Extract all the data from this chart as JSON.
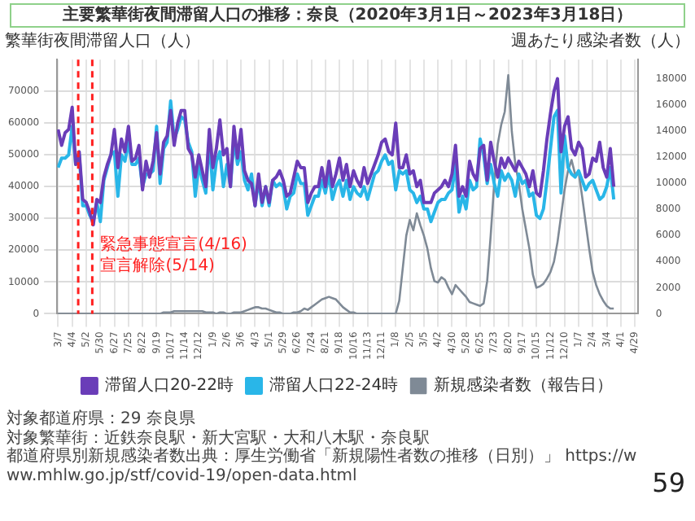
{
  "chart_data": {
    "type": "line",
    "title": "主要繁華街夜間滞留人口の推移：奈良（2020年3月1日～2023年3月18日）",
    "ylabel": "繁華街夜間滞留人口（人）",
    "y2label": "週あたり感染者数（人）",
    "x": [
      "2020-03-07",
      "2020-03-14",
      "2020-03-21",
      "2020-03-28",
      "2020-04-04",
      "2020-04-11",
      "2020-04-18",
      "2020-04-25",
      "2020-05-02",
      "2020-05-09",
      "2020-05-16",
      "2020-05-23",
      "2020-05-30",
      "2020-06-06",
      "2020-06-13",
      "2020-06-20",
      "2020-06-27",
      "2020-07-04",
      "2020-07-11",
      "2020-07-18",
      "2020-07-25",
      "2020-08-01",
      "2020-08-08",
      "2020-08-15",
      "2020-08-22",
      "2020-08-29",
      "2020-09-05",
      "2020-09-12",
      "2020-09-19",
      "2020-09-26",
      "2020-10-03",
      "2020-10-10",
      "2020-10-17",
      "2020-10-24",
      "2020-10-31",
      "2020-11-07",
      "2020-11-14",
      "2020-11-21",
      "2020-11-28",
      "2020-12-05",
      "2020-12-12",
      "2020-12-19",
      "2020-12-26",
      "2021-01-02",
      "2021-01-09",
      "2021-01-16",
      "2021-01-23",
      "2021-01-30",
      "2021-02-06",
      "2021-02-13",
      "2021-02-20",
      "2021-02-27",
      "2021-03-06",
      "2021-03-13",
      "2021-03-20",
      "2021-03-27",
      "2021-04-03",
      "2021-04-10",
      "2021-04-17",
      "2021-04-24",
      "2021-05-01",
      "2021-05-08",
      "2021-05-15",
      "2021-05-22",
      "2021-05-29",
      "2021-06-05",
      "2021-06-12",
      "2021-06-19",
      "2021-06-26",
      "2021-07-03",
      "2021-07-10",
      "2021-07-17",
      "2021-07-24",
      "2021-07-31",
      "2021-08-07",
      "2021-08-14",
      "2021-08-21",
      "2021-08-28",
      "2021-09-04",
      "2021-09-11",
      "2021-09-18",
      "2021-09-25",
      "2021-10-02",
      "2021-10-09",
      "2021-10-16",
      "2021-10-23",
      "2021-10-30",
      "2021-11-06",
      "2021-11-13",
      "2021-11-20",
      "2021-11-27",
      "2021-12-04",
      "2021-12-11",
      "2021-12-18",
      "2021-12-25",
      "2022-01-01",
      "2022-01-08",
      "2022-01-15",
      "2022-01-22",
      "2022-01-29",
      "2022-02-05",
      "2022-02-12",
      "2022-02-19",
      "2022-02-26",
      "2022-03-05",
      "2022-03-12",
      "2022-03-19",
      "2022-03-26",
      "2022-04-02",
      "2022-04-09",
      "2022-04-16",
      "2022-04-23",
      "2022-04-30",
      "2022-05-07",
      "2022-05-14",
      "2022-05-21",
      "2022-05-28",
      "2022-06-04",
      "2022-06-11",
      "2022-06-18",
      "2022-06-25",
      "2022-07-02",
      "2022-07-09",
      "2022-07-16",
      "2022-07-23",
      "2022-07-30",
      "2022-08-06",
      "2022-08-13",
      "2022-08-20",
      "2022-08-27",
      "2022-09-03",
      "2022-09-10",
      "2022-09-17",
      "2022-09-24",
      "2022-10-01",
      "2022-10-08",
      "2022-10-15",
      "2022-10-22",
      "2022-10-29",
      "2022-11-05",
      "2022-11-12",
      "2022-11-19",
      "2022-11-26",
      "2022-12-03",
      "2022-12-10",
      "2022-12-17",
      "2022-12-24",
      "2022-12-31",
      "2023-01-07",
      "2023-01-14",
      "2023-01-21",
      "2023-01-28",
      "2023-02-04",
      "2023-02-11",
      "2023-02-18",
      "2023-02-25",
      "2023-03-04",
      "2023-03-11",
      "2023-03-18"
    ],
    "series": [
      {
        "name": "滞留人口20-22時",
        "color": "#6a3db8",
        "axis": "y",
        "values": [
          58000,
          53000,
          57000,
          58000,
          65000,
          47000,
          51000,
          36000,
          35000,
          32000,
          28000,
          36000,
          35000,
          43000,
          47000,
          50000,
          58000,
          46000,
          55000,
          51000,
          59000,
          48000,
          49000,
          53000,
          39000,
          48000,
          43000,
          48000,
          57000,
          44000,
          54000,
          56000,
          64000,
          53000,
          60000,
          64000,
          64000,
          52000,
          50000,
          43000,
          50000,
          45000,
          40000,
          58000,
          46000,
          52000,
          61000,
          50000,
          52000,
          40000,
          59000,
          49000,
          58000,
          45000,
          42000,
          41000,
          34000,
          44000,
          35000,
          40000,
          35000,
          42000,
          43000,
          45000,
          42000,
          37000,
          38000,
          43000,
          48000,
          46000,
          46000,
          35000,
          38000,
          40000,
          40000,
          46000,
          40000,
          48000,
          40000,
          44000,
          49000,
          42000,
          47000,
          40000,
          45000,
          42000,
          40000,
          46000,
          41000,
          44000,
          47000,
          50000,
          54000,
          55000,
          51000,
          50000,
          60000,
          46000,
          46000,
          50000,
          44000,
          45000,
          40000,
          42000,
          35000,
          35000,
          35000,
          38000,
          39000,
          40000,
          42000,
          40000,
          44000,
          53000,
          37000,
          40000,
          37000,
          48000,
          44000,
          42000,
          52000,
          53000,
          42000,
          54000,
          48000,
          43000,
          49000,
          46000,
          49000,
          47000,
          45000,
          48000,
          46000,
          44000,
          40000,
          45000,
          38000,
          37000,
          45000,
          55000,
          63000,
          70000,
          74000,
          51000,
          59000,
          62000,
          52000,
          50000,
          54000,
          52000,
          43000,
          44000,
          49000,
          48000,
          54000,
          46000,
          43000,
          52000,
          40000
        ]
      },
      {
        "name": "滞留人口22-24時",
        "color": "#29b6e8",
        "axis": "y",
        "values": [
          46000,
          49000,
          49000,
          50000,
          59000,
          47000,
          50000,
          34000,
          34000,
          31000,
          29000,
          35000,
          29000,
          42000,
          46000,
          50000,
          51000,
          37000,
          50000,
          48000,
          54000,
          47000,
          47000,
          49000,
          40000,
          44000,
          44000,
          45000,
          59000,
          41000,
          52000,
          54000,
          67000,
          55000,
          58000,
          62000,
          61000,
          54000,
          51000,
          37000,
          47000,
          42000,
          38000,
          55000,
          39000,
          48000,
          51000,
          40000,
          47000,
          40000,
          55000,
          47000,
          51000,
          42000,
          39000,
          44000,
          34000,
          42000,
          34000,
          40000,
          34000,
          42000,
          40000,
          41000,
          40000,
          33000,
          37000,
          38000,
          44000,
          41000,
          41000,
          31000,
          34000,
          37000,
          37000,
          42000,
          38000,
          44000,
          36000,
          40000,
          42000,
          37000,
          42000,
          36000,
          40000,
          38000,
          37000,
          40000,
          36000,
          40000,
          44000,
          45000,
          48000,
          50000,
          47000,
          48000,
          39000,
          45000,
          44000,
          45000,
          39000,
          38000,
          35000,
          37000,
          33000,
          33000,
          29000,
          32000,
          35000,
          36000,
          36000,
          38000,
          39000,
          47000,
          32000,
          37000,
          33000,
          42000,
          39000,
          40000,
          55000,
          50000,
          41000,
          47000,
          41000,
          37000,
          45000,
          42000,
          44000,
          42000,
          37000,
          44000,
          41000,
          42000,
          37000,
          38000,
          31000,
          30000,
          33000,
          42000,
          52000,
          62000,
          64000,
          38000,
          56000,
          46000,
          44000,
          43000,
          45000,
          42000,
          39000,
          41000,
          42000,
          39000,
          36000,
          37000,
          40000,
          46000,
          36000
        ]
      },
      {
        "name": "新規感染者数（報告日）",
        "color": "#7f8a96",
        "axis": "y2",
        "values": [
          0,
          0,
          0,
          0,
          0,
          0,
          0,
          0,
          0,
          0,
          0,
          0,
          0,
          0,
          0,
          0,
          0,
          0,
          0,
          0,
          0,
          0,
          0,
          0,
          0,
          0,
          0,
          0,
          0,
          0,
          100,
          100,
          100,
          200,
          200,
          200,
          200,
          200,
          200,
          200,
          200,
          200,
          100,
          100,
          100,
          0,
          100,
          100,
          0,
          0,
          100,
          100,
          100,
          200,
          300,
          400,
          500,
          500,
          400,
          400,
          300,
          200,
          100,
          100,
          0,
          0,
          0,
          100,
          100,
          200,
          400,
          300,
          500,
          700,
          900,
          1100,
          1200,
          1300,
          1200,
          1100,
          800,
          500,
          300,
          100,
          100,
          0,
          0,
          0,
          0,
          0,
          0,
          0,
          0,
          0,
          0,
          0,
          0,
          1000,
          3500,
          6000,
          7200,
          6400,
          7700,
          6800,
          6000,
          5000,
          3500,
          2500,
          2400,
          2800,
          2600,
          2000,
          1500,
          2200,
          1900,
          1600,
          1300,
          900,
          800,
          700,
          600,
          800,
          2500,
          6000,
          10000,
          13000,
          14500,
          15500,
          18300,
          14000,
          11500,
          10000,
          8000,
          6500,
          5000,
          3000,
          2000,
          2100,
          2300,
          2700,
          3200,
          4000,
          5500,
          7500,
          9500,
          11000,
          11800,
          10700,
          10900,
          9000,
          7000,
          5000,
          3200,
          2200,
          1500,
          1000,
          600,
          400,
          400
        ]
      }
    ],
    "xlim": [
      "2020-03-05",
      "2023-05-05"
    ],
    "xticks": [
      {
        "value": "2020-03-07",
        "label": "3/7"
      },
      {
        "value": "2020-04-04",
        "label": "4/4"
      },
      {
        "value": "2020-05-02",
        "label": "5/2"
      },
      {
        "value": "2020-05-30",
        "label": "5/30"
      },
      {
        "value": "2020-06-27",
        "label": "6/27"
      },
      {
        "value": "2020-07-25",
        "label": "7/25"
      },
      {
        "value": "2020-08-22",
        "label": "8/22"
      },
      {
        "value": "2020-09-19",
        "label": "9/19"
      },
      {
        "value": "2020-10-17",
        "label": "10/17"
      },
      {
        "value": "2020-11-14",
        "label": "11/14"
      },
      {
        "value": "2020-12-12",
        "label": "12/12"
      },
      {
        "value": "2021-01-09",
        "label": "1/9"
      },
      {
        "value": "2021-02-06",
        "label": "2/6"
      },
      {
        "value": "2021-03-06",
        "label": "3/6"
      },
      {
        "value": "2021-04-03",
        "label": "4/3"
      },
      {
        "value": "2021-05-01",
        "label": "5/1"
      },
      {
        "value": "2021-05-29",
        "label": "5/29"
      },
      {
        "value": "2021-06-26",
        "label": "6/26"
      },
      {
        "value": "2021-07-24",
        "label": "7/24"
      },
      {
        "value": "2021-08-21",
        "label": "8/21"
      },
      {
        "value": "2021-09-18",
        "label": "9/18"
      },
      {
        "value": "2021-10-16",
        "label": "10/16"
      },
      {
        "value": "2021-11-13",
        "label": "11/13"
      },
      {
        "value": "2021-12-11",
        "label": "12/11"
      },
      {
        "value": "2022-01-08",
        "label": "1/8"
      },
      {
        "value": "2022-02-05",
        "label": "2/5"
      },
      {
        "value": "2022-03-05",
        "label": "3/5"
      },
      {
        "value": "2022-04-02",
        "label": "4/2"
      },
      {
        "value": "2022-04-30",
        "label": "4/30"
      },
      {
        "value": "2022-05-28",
        "label": "5/28"
      },
      {
        "value": "2022-06-25",
        "label": "6/25"
      },
      {
        "value": "2022-07-23",
        "label": "7/23"
      },
      {
        "value": "2022-08-20",
        "label": "8/20"
      },
      {
        "value": "2022-09-17",
        "label": "9/17"
      },
      {
        "value": "2022-10-15",
        "label": "10/15"
      },
      {
        "value": "2022-11-12",
        "label": "11/12"
      },
      {
        "value": "2022-12-10",
        "label": "12/10"
      },
      {
        "value": "2023-01-07",
        "label": "1/7"
      },
      {
        "value": "2023-02-04",
        "label": "2/4"
      },
      {
        "value": "2023-03-04",
        "label": "3/4"
      },
      {
        "value": "2023-04-01",
        "label": "4/1"
      },
      {
        "value": "2023-04-29",
        "label": "4/29"
      }
    ],
    "ylim": [
      0,
      80000
    ],
    "yticks": [
      0,
      10000,
      20000,
      30000,
      40000,
      50000,
      60000,
      70000
    ],
    "y2lim": [
      0,
      19500
    ],
    "y2ticks": [
      0,
      2000,
      4000,
      6000,
      8000,
      10000,
      12000,
      14000,
      16000,
      18000
    ],
    "grid": true,
    "legend": "bottom",
    "ref_lines": [
      {
        "axis": "x",
        "value": "2020-04-16",
        "label": "緊急事態宣言(4/16)",
        "color": "#ff2020",
        "line_style": "dashed"
      },
      {
        "axis": "x",
        "value": "2020-05-14",
        "label": "宣言解除(5/14)",
        "color": "#ff2020",
        "line_style": "dashed"
      }
    ],
    "annotations": [
      "対象都道府県：29 奈良県",
      "対象繁華街：近鉄奈良駅・新大宮駅・大和八木駅・奈良駅",
      "都道府県別新規感染者数出典：厚生労働省「新規陽性者数の推移（日別）」 https://www.mhlw.go.jp/stf/covid-19/open-data.html",
      "59"
    ]
  }
}
